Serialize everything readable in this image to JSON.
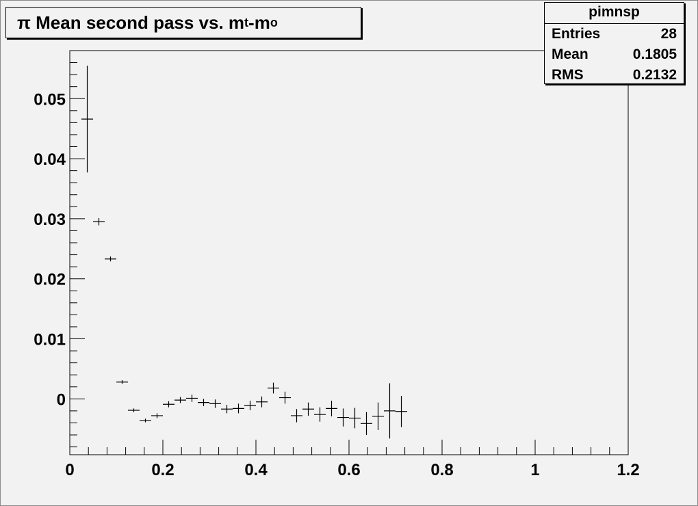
{
  "title": {
    "prefix": "π Mean second pass vs. m",
    "sub1": "t",
    "mid": "-m",
    "sub2": "o"
  },
  "stats": {
    "name": "pimnsp",
    "rows": [
      {
        "label": "Entries",
        "value": "28"
      },
      {
        "label": "Mean",
        "value": "0.1805"
      },
      {
        "label": "RMS",
        "value": "0.2132"
      }
    ]
  },
  "chart_data": {
    "type": "scatter",
    "xlim": [
      0,
      1.2
    ],
    "ylim": [
      -0.0093,
      0.058
    ],
    "x_ticks": [
      0,
      0.2,
      0.4,
      0.6,
      0.8,
      1,
      1.2
    ],
    "x_tick_labels": [
      "0",
      "0.2",
      "0.4",
      "0.6",
      "0.8",
      "1",
      "1.2"
    ],
    "y_ticks": [
      0,
      0.01,
      0.02,
      0.03,
      0.04,
      0.05
    ],
    "y_tick_labels": [
      "0",
      "0.01",
      "0.02",
      "0.03",
      "0.04",
      "0.05"
    ],
    "bin_width": 0.025,
    "grid": false,
    "points": [
      {
        "x": 0.0375,
        "y": 0.0466,
        "err": 0.0089
      },
      {
        "x": 0.0625,
        "y": 0.0295,
        "err": 0.0006
      },
      {
        "x": 0.0875,
        "y": 0.0233,
        "err": 0.0004
      },
      {
        "x": 0.1125,
        "y": 0.0028,
        "err": 0.0003
      },
      {
        "x": 0.1375,
        "y": -0.0019,
        "err": 0.0003
      },
      {
        "x": 0.1625,
        "y": -0.0036,
        "err": 0.0003
      },
      {
        "x": 0.1875,
        "y": -0.0028,
        "err": 0.0004
      },
      {
        "x": 0.2125,
        "y": -0.0009,
        "err": 0.0005
      },
      {
        "x": 0.2375,
        "y": -0.0002,
        "err": 0.0005
      },
      {
        "x": 0.2625,
        "y": 0.0001,
        "err": 0.0006
      },
      {
        "x": 0.2875,
        "y": -0.0006,
        "err": 0.0006
      },
      {
        "x": 0.3125,
        "y": -0.0008,
        "err": 0.0007
      },
      {
        "x": 0.3375,
        "y": -0.0017,
        "err": 0.0007
      },
      {
        "x": 0.3625,
        "y": -0.0016,
        "err": 0.0008
      },
      {
        "x": 0.3875,
        "y": -0.0011,
        "err": 0.0008
      },
      {
        "x": 0.4125,
        "y": -0.0005,
        "err": 0.0009
      },
      {
        "x": 0.4375,
        "y": 0.0018,
        "err": 0.0009
      },
      {
        "x": 0.4625,
        "y": 0.0002,
        "err": 0.001
      },
      {
        "x": 0.4875,
        "y": -0.0028,
        "err": 0.0011
      },
      {
        "x": 0.5125,
        "y": -0.0017,
        "err": 0.0011
      },
      {
        "x": 0.5375,
        "y": -0.0026,
        "err": 0.0012
      },
      {
        "x": 0.5625,
        "y": -0.0016,
        "err": 0.0013
      },
      {
        "x": 0.5875,
        "y": -0.0031,
        "err": 0.0015
      },
      {
        "x": 0.6125,
        "y": -0.0032,
        "err": 0.0017
      },
      {
        "x": 0.6375,
        "y": -0.0041,
        "err": 0.0019
      },
      {
        "x": 0.6625,
        "y": -0.0029,
        "err": 0.0023
      },
      {
        "x": 0.6875,
        "y": -0.002,
        "err": 0.0046
      },
      {
        "x": 0.7125,
        "y": -0.0021,
        "err": 0.0026
      }
    ]
  }
}
